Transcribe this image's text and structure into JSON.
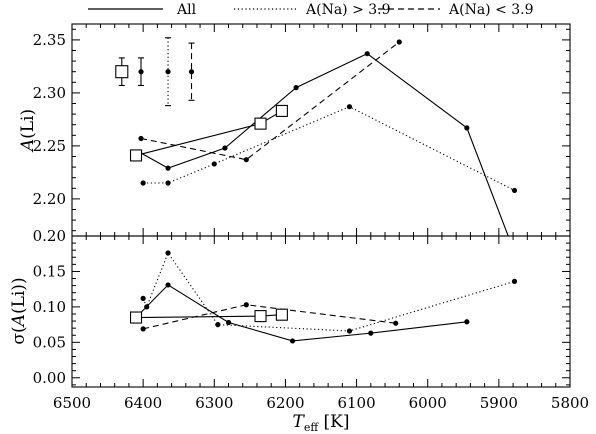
{
  "chart_data": [
    {
      "type": "line",
      "ylabel": "A(Li)",
      "ylabel_main": "A",
      "ylabel_paren": "(Li)",
      "xlim": [
        6500,
        5800
      ],
      "ylim": [
        2.165,
        2.365
      ],
      "yticks": [
        "2.20",
        "2.25",
        "2.30",
        "2.35"
      ],
      "series": [
        {
          "name": "All",
          "style": "solid",
          "markers": false,
          "x": [
            6405,
            6365,
            6285,
            6185,
            6085,
            5945,
            5880
          ],
          "y": [
            2.244,
            2.229,
            2.248,
            2.305,
            2.337,
            2.267,
            2.153
          ]
        },
        {
          "name": "A(Na) > 3.9",
          "style": "dotted",
          "x": [
            6400,
            6365,
            6300,
            6110,
            5878
          ],
          "y": [
            2.215,
            2.215,
            2.233,
            2.287,
            2.208
          ]
        },
        {
          "name": "A(Na) < 3.9",
          "style": "dashed",
          "x": [
            6403,
            6255,
            6040
          ],
          "y": [
            2.257,
            2.237,
            2.348
          ]
        },
        {
          "name": "All",
          "style": "solid-squares",
          "x": [
            6410,
            6235,
            6205
          ],
          "y": [
            2.241,
            2.271,
            2.283
          ]
        }
      ],
      "error_bars": [
        {
          "x": 6430,
          "y": 2.32,
          "err": 0.013,
          "marker": "square",
          "style": "solid"
        },
        {
          "x": 6403,
          "y": 2.32,
          "err": 0.013,
          "marker": "dot",
          "style": "solid"
        },
        {
          "x": 6365,
          "y": 2.32,
          "err": 0.032,
          "marker": "dot",
          "style": "dotted"
        },
        {
          "x": 6332,
          "y": 2.32,
          "err": 0.027,
          "marker": "dot",
          "style": "dashed"
        }
      ]
    },
    {
      "type": "line",
      "ylabel": "σ(A(Li))",
      "ylabel_pre": "σ(",
      "ylabel_main": "A",
      "ylabel_post": "(Li))",
      "xlabel": "Teff [K]",
      "xlabel_main": "T",
      "xlabel_sub": "eff",
      "xlabel_unit": " [K]",
      "xlim": [
        6500,
        5800
      ],
      "ylim": [
        -0.013,
        0.2
      ],
      "yticks": [
        "0.00",
        "0.05",
        "0.10",
        "0.15",
        "0.20"
      ],
      "xticks": [
        "6500",
        "6400",
        "6300",
        "6200",
        "6100",
        "6000",
        "5900",
        "5800"
      ],
      "series": [
        {
          "name": "All",
          "style": "solid",
          "x": [
            6410,
            6365,
            6280,
            6190,
            6080,
            5945
          ],
          "y": [
            0.085,
            0.131,
            0.078,
            0.052,
            0.063,
            0.079
          ]
        },
        {
          "name": "A(Na) > 3.9",
          "style": "dotted",
          "x": [
            6400,
            6395,
            6365,
            6295,
            6110,
            5878
          ],
          "y": [
            0.112,
            0.1,
            0.176,
            0.075,
            0.066,
            0.136
          ]
        },
        {
          "name": "A(Na) < 3.9",
          "style": "dashed",
          "x": [
            6400,
            6255,
            6045
          ],
          "y": [
            0.069,
            0.103,
            0.077
          ]
        },
        {
          "name": "All",
          "style": "solid-squares",
          "x": [
            6410,
            6235,
            6205
          ],
          "y": [
            0.085,
            0.087,
            0.089
          ]
        }
      ]
    }
  ],
  "legend": [
    {
      "label": "All",
      "style": "solid"
    },
    {
      "label": "A(Na) > 3.9",
      "style": "dotted"
    },
    {
      "label": "A(Na) < 3.9",
      "style": "dashed"
    }
  ]
}
